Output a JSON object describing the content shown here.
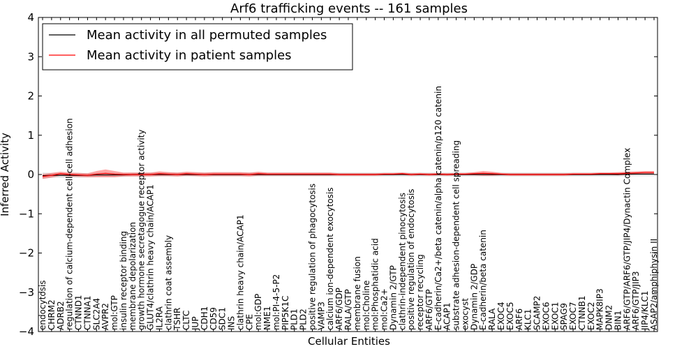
{
  "chart_data": {
    "type": "line",
    "title": "Arf6 trafficking events -- 161 samples",
    "xlabel": "Cellular Entities",
    "ylabel": "Inferred Activity",
    "ylim": [
      -4,
      4
    ],
    "yticks": [
      "4",
      "3",
      "2",
      "1",
      "0",
      "−1",
      "−2",
      "−3",
      "−4"
    ],
    "legend_position": "top-left",
    "categories": [
      "endocytosis",
      "CHRM2",
      "ADRB2",
      "regulation of calcium-dependent cell-cell adhesion",
      "CTNND1",
      "CTNNA1",
      "SLC2A4",
      "AVPR2",
      "mol:GTP",
      "insulin receptor binding",
      "membrane depolarization",
      "growth hormone secretagogue receptor activity",
      "GLUT4/clathrin heavy chain/ACAP1",
      "IL2RA",
      "clathrin coat assembly",
      "TSHR",
      "CLTC",
      "JUP",
      "CDH1",
      "CD59",
      "SDC1",
      "INS",
      "clathrin heavy chain/ACAP1",
      "CPE",
      "mol:GDP",
      "NME1",
      "mol:PI-4-5-P2",
      "PIP5K1C",
      "PLD1",
      "PLD2",
      "positive regulation of phagocytosis",
      "VAMP3",
      "calcium ion-dependent exocytosis",
      "ARF6/GDP",
      "RALA/GTP",
      "membrane fusion",
      "mol:Choline",
      "mol:Phosphatidic acid",
      "mol:Ca2+",
      "Dynamin 2/GTP",
      "clathrin-independent pinocytosis",
      "positive regulation of endocytosis",
      "receptor recycling",
      "ARF6/GTP",
      "E-cadherin/Ca2+/beta catenin/alpha catenin/p120 catenin",
      "ACAP1",
      "substrate adhesion-dependent cell spreading",
      "exocyst",
      "Dynamin 2/GDP",
      "E-cadherin/beta catenin",
      "RALA",
      "EXOC4",
      "EXOC5",
      "ARF6",
      "KLC1",
      "SCAMP2",
      "EXOC6",
      "EXOC1",
      "SPAG9",
      "EXOC7",
      "CTNNB1",
      "EXOC2",
      "MAPK8IP3",
      "DNM2",
      "BIN1",
      "ARF6/GTP/ARF6/GTP/JIP4/Dynactin Complex",
      "ARF6/GTP/JIP3",
      "JIP4/KLC1",
      "ASAP2/amphiphysin II"
    ],
    "series": [
      {
        "name": "Mean activity in all permuted samples",
        "color": "#000000",
        "values": [
          -0.03,
          -0.02,
          -0.02,
          -0.02,
          -0.02,
          -0.02,
          -0.01,
          -0.01,
          -0.01,
          -0.01,
          0,
          0,
          0,
          0,
          0,
          0,
          0,
          0,
          0,
          0,
          0,
          0,
          0,
          0,
          0,
          0,
          0,
          0,
          0,
          0,
          0,
          0,
          0,
          0,
          0,
          0,
          0,
          0,
          0,
          0,
          0,
          0,
          0,
          0,
          0,
          0,
          0,
          0,
          0,
          0,
          0,
          0,
          0,
          0,
          0,
          0,
          0,
          0,
          0,
          0,
          0,
          0,
          0,
          0,
          0,
          0.01,
          0.01,
          0.01,
          0.01
        ],
        "band": [
          0.08,
          0.06,
          0.06,
          0.06,
          0.06,
          0.05,
          0.05,
          0.05,
          0.05,
          0.05,
          0.05,
          0.05,
          0.05,
          0.05,
          0.05,
          0.05,
          0.05,
          0.05,
          0.05,
          0.05,
          0.05,
          0.05,
          0.05,
          0.05,
          0.05,
          0.05,
          0.05,
          0.05,
          0.05,
          0.05,
          0.05,
          0.05,
          0.05,
          0.05,
          0.05,
          0.05,
          0.05,
          0.05,
          0.05,
          0.05,
          0.05,
          0.05,
          0.05,
          0.05,
          0.05,
          0.05,
          0.05,
          0.05,
          0.05,
          0.05,
          0.05,
          0.05,
          0.05,
          0.05,
          0.05,
          0.05,
          0.05,
          0.05,
          0.05,
          0.05,
          0.05,
          0.05,
          0.05,
          0.05,
          0.05,
          0.05,
          0.05,
          0.05,
          0.05
        ]
      },
      {
        "name": "Mean activity in patient samples",
        "color": "#ff0000",
        "values": [
          -0.05,
          -0.02,
          0.02,
          0,
          -0.01,
          -0.02,
          0.01,
          0.03,
          0.01,
          0,
          0,
          0,
          0,
          0.02,
          0.01,
          0,
          0.02,
          0.01,
          0,
          0.01,
          0.01,
          0.01,
          0.01,
          0,
          0.02,
          0.01,
          0.01,
          0.01,
          0.01,
          0.01,
          0.01,
          0.01,
          0.01,
          0,
          0,
          0,
          0,
          0,
          0.01,
          0.01,
          0.02,
          0,
          0.01,
          0,
          0.01,
          0,
          0.01,
          0.01,
          0.02,
          0.03,
          0.02,
          0.01,
          0,
          0,
          0,
          0,
          0,
          0,
          0,
          0.01,
          0.01,
          0.01,
          0.02,
          0.02,
          0.02,
          0.03,
          0.04,
          0.05,
          0.05
        ],
        "band": [
          0.06,
          0.06,
          0.05,
          0.05,
          0.05,
          0.05,
          0.08,
          0.1,
          0.08,
          0.05,
          0.05,
          0.05,
          0.05,
          0.06,
          0.05,
          0.05,
          0.05,
          0.05,
          0.05,
          0.05,
          0.05,
          0.05,
          0.05,
          0.05,
          0.05,
          0.04,
          0.04,
          0.04,
          0.04,
          0.04,
          0.04,
          0.04,
          0.04,
          0.03,
          0.03,
          0.03,
          0.03,
          0.03,
          0.03,
          0.03,
          0.03,
          0.03,
          0.03,
          0.03,
          0.03,
          0.03,
          0.03,
          0.03,
          0.04,
          0.06,
          0.05,
          0.03,
          0.03,
          0.03,
          0.03,
          0.03,
          0.03,
          0.03,
          0.03,
          0.03,
          0.03,
          0.03,
          0.03,
          0.03,
          0.04,
          0.04,
          0.04,
          0.04,
          0.04
        ]
      }
    ]
  }
}
